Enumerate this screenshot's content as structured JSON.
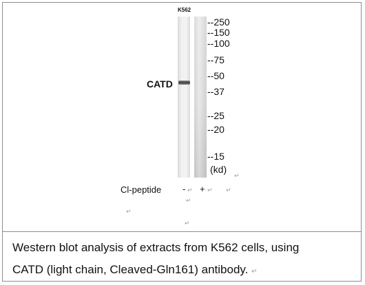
{
  "blot": {
    "lane_label": "K562",
    "protein_label": "CATD",
    "markers": [
      "--250",
      "--150",
      "--100",
      "--75",
      "--50",
      "--37",
      "--25",
      "--20",
      "--15"
    ],
    "unit_label": "(kd)",
    "peptide_label": "Cl-peptide",
    "minus_sign": "-",
    "plus_sign": "+",
    "paragraph_mark": "↵"
  },
  "caption": {
    "line1": "Western blot analysis of extracts from K562 cells, using",
    "line2": "CATD (light chain, Cleaved-Gln161) antibody."
  }
}
